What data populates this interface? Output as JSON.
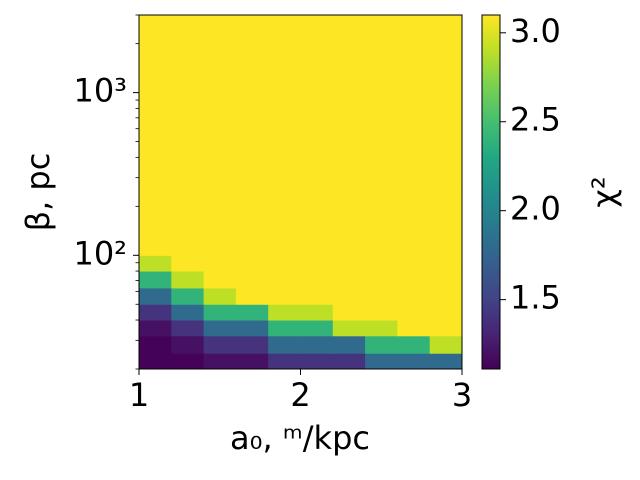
{
  "chart_data": {
    "type": "heatmap",
    "xlabel": "a₀, ᵐ/kpc",
    "ylabel": "β, pc",
    "colorbar_label": "χ²",
    "x_edges": [
      1,
      1.2,
      1.4,
      1.6,
      1.8,
      2,
      2.2,
      2.4,
      2.6,
      2.8,
      3
    ],
    "y_edges": [
      20,
      25,
      32,
      40,
      50,
      63,
      80,
      100,
      130,
      170,
      250,
      500,
      1000,
      2000,
      3000
    ],
    "z": [
      [
        1.12,
        1.12,
        1.2,
        1.2,
        1.4,
        1.4,
        1.4,
        1.8,
        1.8,
        1.8
      ],
      [
        1.12,
        1.2,
        1.4,
        1.4,
        1.8,
        1.8,
        1.8,
        2.4,
        2.4,
        2.9
      ],
      [
        1.2,
        1.4,
        1.8,
        1.8,
        2.4,
        2.4,
        2.9,
        2.9,
        3.1,
        3.1
      ],
      [
        1.4,
        1.8,
        2.4,
        2.4,
        2.9,
        2.9,
        3.1,
        3.1,
        3.1,
        3.1
      ],
      [
        1.8,
        2.4,
        2.9,
        3.1,
        3.1,
        3.1,
        3.1,
        3.1,
        3.1,
        3.1
      ],
      [
        2.4,
        2.9,
        3.1,
        3.1,
        3.1,
        3.1,
        3.1,
        3.1,
        3.1,
        3.1
      ],
      [
        2.9,
        3.1,
        3.1,
        3.1,
        3.1,
        3.1,
        3.1,
        3.1,
        3.1,
        3.1
      ],
      [
        3.1,
        3.1,
        3.1,
        3.1,
        3.1,
        3.1,
        3.1,
        3.1,
        3.1,
        3.1
      ],
      [
        3.1,
        3.1,
        3.1,
        3.1,
        3.1,
        3.1,
        3.1,
        3.1,
        3.1,
        3.1
      ],
      [
        3.1,
        3.1,
        3.1,
        3.1,
        3.1,
        3.1,
        3.1,
        3.1,
        3.1,
        3.1
      ],
      [
        3.1,
        3.1,
        3.1,
        3.1,
        3.1,
        3.1,
        3.1,
        3.1,
        3.1,
        3.1
      ],
      [
        3.1,
        3.1,
        3.1,
        3.1,
        3.1,
        3.1,
        3.1,
        3.1,
        3.1,
        3.1
      ],
      [
        3.1,
        3.1,
        3.1,
        3.1,
        3.1,
        3.1,
        3.1,
        3.1,
        3.1,
        3.1
      ],
      [
        3.1,
        3.1,
        3.1,
        3.1,
        3.1,
        3.1,
        3.1,
        3.1,
        3.1,
        3.1
      ]
    ],
    "xlim": [
      1,
      3
    ],
    "xticks": [
      1,
      2,
      3
    ],
    "ylim": [
      20,
      3000
    ],
    "ylog": true,
    "yticks": [
      {
        "value": 100,
        "label": "10²"
      },
      {
        "value": 1000,
        "label": "10³"
      }
    ],
    "yminorticks": [
      20,
      30,
      40,
      50,
      60,
      70,
      80,
      90,
      200,
      300,
      400,
      500,
      600,
      700,
      800,
      900,
      2000,
      3000
    ],
    "colormap": "viridis",
    "clim": [
      1.11,
      3.1
    ],
    "cticks": [
      1.5,
      {
        "value": 2,
        "label": "2.0"
      },
      2.5,
      {
        "value": 3,
        "label": "3.0"
      }
    ]
  }
}
